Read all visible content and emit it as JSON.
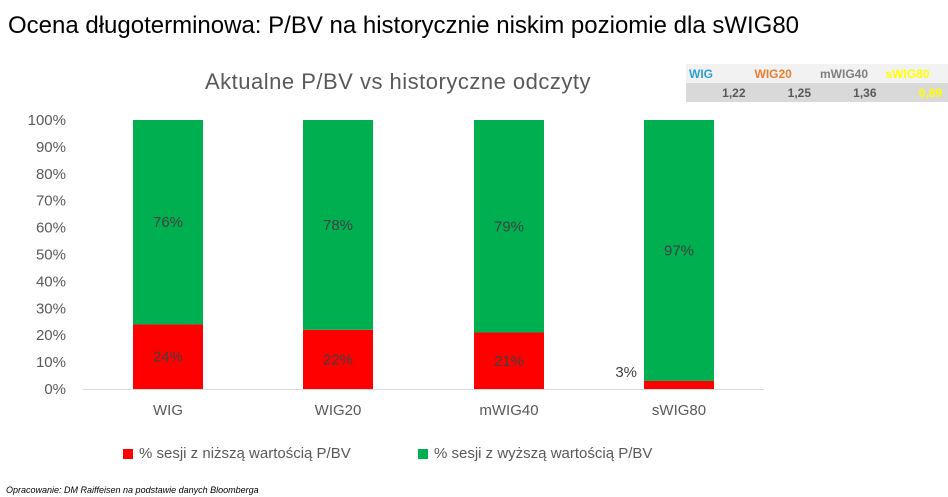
{
  "slide": {
    "title": "Ocena długoterminowa: P/BV na historycznie niskim poziomie dla sWIG80",
    "footnote": "Opracowanie: DM Raiffeisen na podstawie danych Bloomberga"
  },
  "pbv_table": {
    "headers": [
      {
        "label": "WIG",
        "color": "#2e9fd8"
      },
      {
        "label": "WIG20",
        "color": "#ed7d31"
      },
      {
        "label": "mWIG40",
        "color": "#7f7f7f"
      },
      {
        "label": "sWIG80",
        "color": "#ffff00"
      }
    ],
    "values": [
      {
        "text": "1,22",
        "color": "#595959"
      },
      {
        "text": "1,25",
        "color": "#595959"
      },
      {
        "text": "1,36",
        "color": "#595959"
      },
      {
        "text": "0,89",
        "color": "#ffff00"
      }
    ]
  },
  "chart_data": {
    "type": "bar",
    "stacked": true,
    "title": "Aktualne P/BV vs historyczne odczyty",
    "categories": [
      "WIG",
      "WIG20",
      "mWIG40",
      "sWIG80"
    ],
    "series": [
      {
        "name": "% sesji z niższą wartością P/BV",
        "values": [
          24,
          22,
          21,
          3
        ],
        "labels": [
          "24%",
          "22%",
          "21%",
          "3%"
        ],
        "color": "#ff0000"
      },
      {
        "name": "% sesji z wyższą wartością P/BV",
        "values": [
          76,
          78,
          79,
          97
        ],
        "labels": [
          "76%",
          "78%",
          "79%",
          "97%"
        ],
        "color": "#00b050"
      }
    ],
    "ylim": [
      0,
      100
    ],
    "yticks": [
      "0%",
      "10%",
      "20%",
      "30%",
      "40%",
      "50%",
      "60%",
      "70%",
      "80%",
      "90%",
      "100%"
    ],
    "grid": false,
    "legend_position": "bottom"
  }
}
